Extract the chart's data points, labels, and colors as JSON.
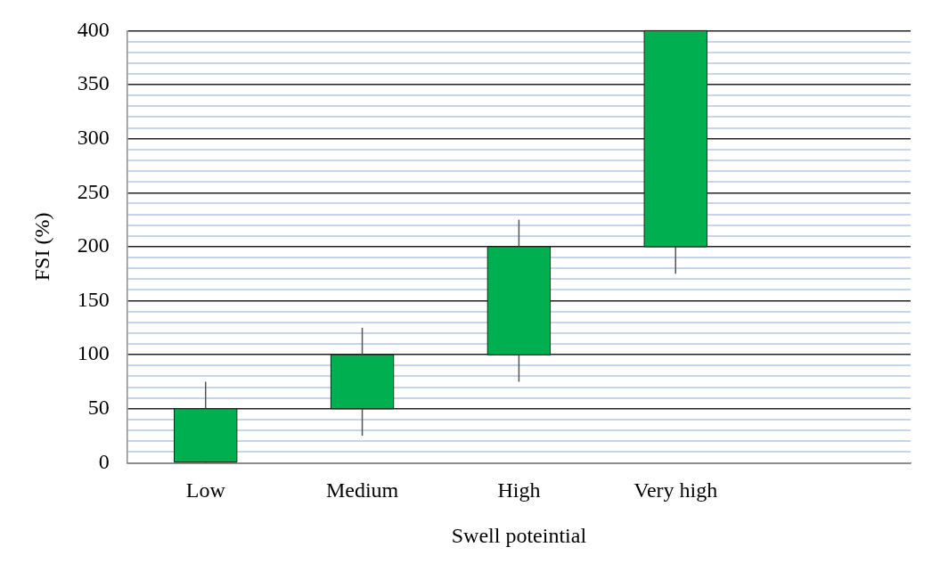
{
  "chart_data": {
    "type": "candlestick",
    "xlabel": "Swell poteintial",
    "ylabel": "FSI (%)",
    "categories": [
      "Low",
      "Medium",
      "High",
      "Very high",
      null
    ],
    "ohlc": [
      [
        0,
        75,
        0,
        50
      ],
      [
        50,
        125,
        25,
        100
      ],
      [
        100,
        225,
        75,
        200
      ],
      [
        200,
        400,
        175,
        400
      ],
      null
    ],
    "color": "#00b050",
    "ylim": [
      0,
      400
    ],
    "yticks": [
      0,
      {
        "value": 10,
        "label": null
      },
      {
        "value": 20,
        "label": null
      },
      {
        "value": 30,
        "label": null
      },
      {
        "value": 40,
        "label": null
      },
      50,
      {
        "value": 60,
        "label": null
      },
      {
        "value": 70,
        "label": null
      },
      {
        "value": 80,
        "label": null
      },
      {
        "value": 90,
        "label": null
      },
      100,
      {
        "value": 110,
        "label": null
      },
      {
        "value": 120,
        "label": null
      },
      {
        "value": 130,
        "label": null
      },
      {
        "value": 140,
        "label": null
      },
      150,
      {
        "value": 160,
        "label": null
      },
      {
        "value": 170,
        "label": null
      },
      {
        "value": 180,
        "label": null
      },
      {
        "value": 190,
        "label": null
      },
      200,
      {
        "value": 210,
        "label": null
      },
      {
        "value": 220,
        "label": null
      },
      {
        "value": 230,
        "label": null
      },
      {
        "value": 240,
        "label": null
      },
      250,
      {
        "value": 260,
        "label": null
      },
      {
        "value": 270,
        "label": null
      },
      {
        "value": 280,
        "label": null
      },
      {
        "value": 290,
        "label": null
      },
      300,
      {
        "value": 310,
        "label": null
      },
      {
        "value": 320,
        "label": null
      },
      {
        "value": 330,
        "label": null
      },
      {
        "value": 340,
        "label": null
      },
      350,
      {
        "value": 360,
        "label": null
      },
      {
        "value": 370,
        "label": null
      },
      {
        "value": 380,
        "label": null
      },
      {
        "value": 390,
        "label": null
      },
      400
    ],
    "grid": true,
    "legend": false
  }
}
